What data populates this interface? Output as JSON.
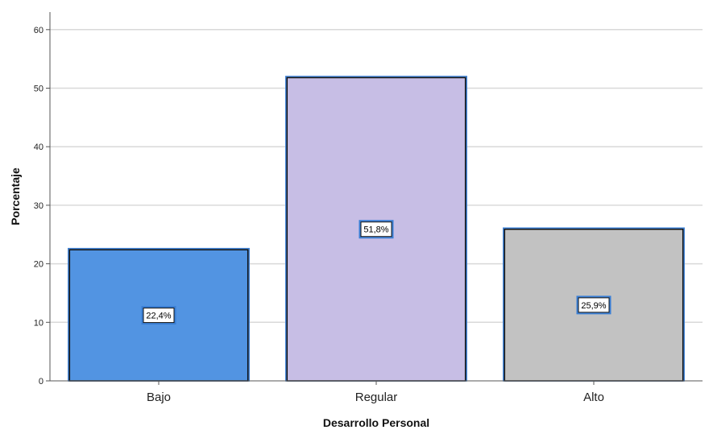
{
  "chart_data": {
    "type": "bar",
    "categories": [
      "Bajo",
      "Regular",
      "Alto"
    ],
    "values": [
      22.4,
      51.8,
      25.9
    ],
    "data_labels": [
      "22,4%",
      "51,8%",
      "25,9%"
    ],
    "bar_colors": [
      "#5294e2",
      "#c7bee5",
      "#c2c2c2"
    ],
    "xlabel": "Desarrollo Personal",
    "ylabel": "Porcentaje",
    "ylim": [
      0,
      63
    ],
    "yticks": [
      0,
      10,
      20,
      30,
      40,
      50,
      60
    ],
    "grid": true,
    "legend": "none"
  }
}
